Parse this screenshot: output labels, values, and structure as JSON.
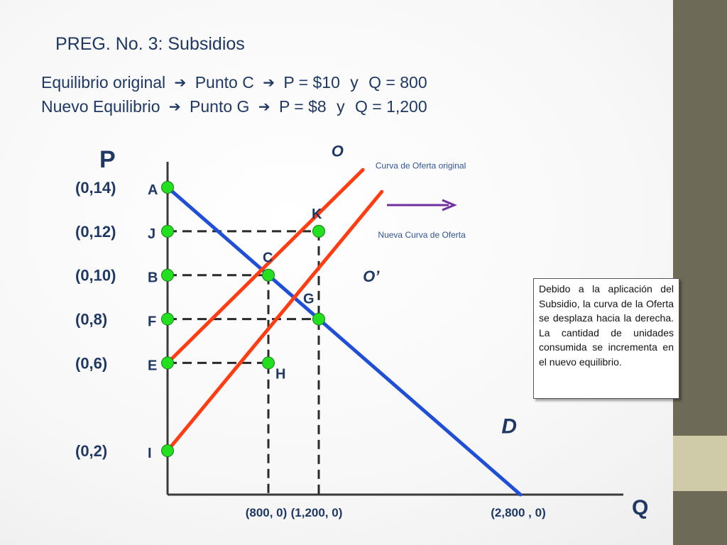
{
  "slide": {
    "title": "PREG. No. 3: Subsidios",
    "eq_original": {
      "label": "Equilibrio original",
      "point": "Punto C",
      "price": "P = $10",
      "conj": "y",
      "qty": "Q = 800"
    },
    "eq_new": {
      "label": "Nuevo Equilibrio",
      "point": "Punto G",
      "price": "P = $8",
      "conj": "y",
      "qty": "Q = 1,200"
    },
    "arrow_icon": "right-arrow-icon",
    "note_box": "Debido a la aplicación del Subsidio, la curva de la Oferta se desplaza hacia la derecha. La cantidad de unidades consumida se incrementa en el nuevo equilibrio."
  },
  "chart_data": {
    "type": "line",
    "ylabel": "P",
    "xlabel": "Q",
    "price_labels": [
      {
        "text": "(0,14)",
        "price": 14
      },
      {
        "text": "(0,12)",
        "price": 12
      },
      {
        "text": "(0,10)",
        "price": 10
      },
      {
        "text": "(0,8)",
        "price": 8
      },
      {
        "text": "(0,6)",
        "price": 6
      },
      {
        "text": "(0,2)",
        "price": 2
      }
    ],
    "qty_labels": [
      {
        "text": "(800, 0)",
        "qty": 800
      },
      {
        "text": "(1,200, 0)",
        "qty": 1200
      },
      {
        "text": "(2,800 , 0)",
        "qty": 2800
      }
    ],
    "points": [
      {
        "name": "A",
        "q": 0,
        "p": 14
      },
      {
        "name": "J",
        "q": 0,
        "p": 12
      },
      {
        "name": "B",
        "q": 0,
        "p": 10
      },
      {
        "name": "F",
        "q": 0,
        "p": 8
      },
      {
        "name": "E",
        "q": 0,
        "p": 6
      },
      {
        "name": "I",
        "q": 0,
        "p": 2
      },
      {
        "name": "K",
        "q": 1200,
        "p": 12
      },
      {
        "name": "C",
        "q": 800,
        "p": 10
      },
      {
        "name": "G",
        "q": 1200,
        "p": 8
      },
      {
        "name": "H",
        "q": 800,
        "p": 6
      }
    ],
    "curves": [
      {
        "name": "D",
        "color": "#1f4fd6",
        "from": [
          0,
          14
        ],
        "to": [
          2800,
          0
        ],
        "label_at": [
          2650,
          2.8
        ]
      },
      {
        "name": "O",
        "color": "#ff3c12",
        "from": [
          0,
          6
        ],
        "to": [
          1550,
          14.8
        ],
        "label_at": [
          1300,
          15.4
        ]
      },
      {
        "name": "O’",
        "color": "#ff3c12",
        "from": [
          0,
          2
        ],
        "to": [
          1700,
          13.8
        ],
        "label_at": [
          1550,
          9.7
        ]
      }
    ],
    "guides": [
      {
        "from": [
          0,
          12
        ],
        "to": [
          1200,
          12
        ]
      },
      {
        "from": [
          0,
          10
        ],
        "to": [
          800,
          10
        ]
      },
      {
        "from": [
          0,
          8
        ],
        "to": [
          1200,
          8
        ]
      },
      {
        "from": [
          0,
          6
        ],
        "to": [
          800,
          6
        ]
      },
      {
        "from": [
          800,
          10
        ],
        "to": [
          800,
          0
        ]
      },
      {
        "from": [
          1200,
          12
        ],
        "to": [
          1200,
          0
        ]
      }
    ],
    "annotations": [
      {
        "text": "Curva de Oferta original",
        "q": 1650,
        "p": 14.85
      },
      {
        "text": "Nueva Curva de Oferta",
        "q": 1670,
        "p": 11.7
      }
    ],
    "colors": {
      "demand": "#1f4fd6",
      "supply": "#ff3c12",
      "point_fill": "#22e01f",
      "shift_arrow": "#7030a0",
      "text": "#1f3864"
    },
    "xlim": [
      0,
      2800
    ],
    "ylim": [
      0,
      14
    ]
  }
}
